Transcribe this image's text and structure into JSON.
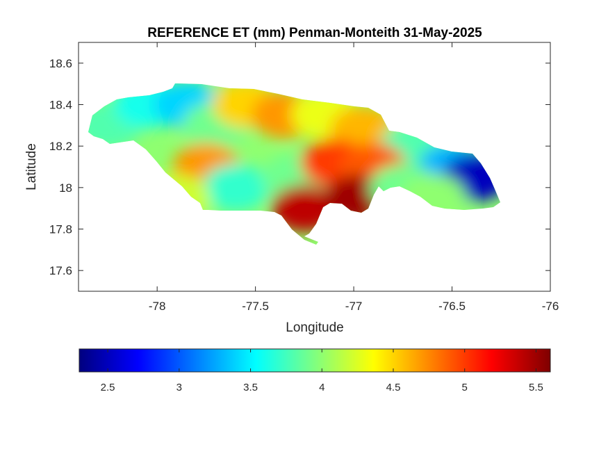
{
  "chart_data": {
    "type": "heatmap",
    "title": "REFERENCE ET (mm) Penman-Monteith 31-May-2025",
    "xlabel": "Longitude",
    "ylabel": "Latitude",
    "xlim": [
      -78.4,
      -76
    ],
    "ylim": [
      17.5,
      18.7
    ],
    "x_ticks": [
      "-78",
      "-77.5",
      "-77",
      "-76.5",
      "-76"
    ],
    "y_ticks": [
      "17.6",
      "17.8",
      "18",
      "18.2",
      "18.4",
      "18.6"
    ],
    "colorbar": {
      "colormap": "jet",
      "range": [
        2.3,
        5.6
      ],
      "ticks": [
        "2.5",
        "3",
        "3.5",
        "4",
        "4.5",
        "5",
        "5.5"
      ],
      "placement": "bottom"
    },
    "regions": [
      {
        "lon": -78.25,
        "lat": 18.3,
        "value": 3.8
      },
      {
        "lon": -78.05,
        "lat": 18.4,
        "value": 3.6
      },
      {
        "lon": -77.85,
        "lat": 18.4,
        "value": 3.4
      },
      {
        "lon": -77.7,
        "lat": 18.3,
        "value": 3.9
      },
      {
        "lon": -77.55,
        "lat": 18.4,
        "value": 4.5
      },
      {
        "lon": -77.35,
        "lat": 18.35,
        "value": 4.7
      },
      {
        "lon": -77.15,
        "lat": 18.35,
        "value": 4.3
      },
      {
        "lon": -76.95,
        "lat": 18.28,
        "value": 4.6
      },
      {
        "lon": -76.7,
        "lat": 18.2,
        "value": 3.8
      },
      {
        "lon": -76.5,
        "lat": 18.1,
        "value": 3.3
      },
      {
        "lon": -76.38,
        "lat": 18.05,
        "value": 2.5
      },
      {
        "lon": -77.75,
        "lat": 18.1,
        "value": 4.7
      },
      {
        "lon": -77.6,
        "lat": 18.0,
        "value": 3.7
      },
      {
        "lon": -77.3,
        "lat": 18.05,
        "value": 3.9
      },
      {
        "lon": -77.1,
        "lat": 18.12,
        "value": 5.0
      },
      {
        "lon": -76.9,
        "lat": 18.1,
        "value": 4.9
      },
      {
        "lon": -77.25,
        "lat": 17.9,
        "value": 5.4
      },
      {
        "lon": -76.98,
        "lat": 17.95,
        "value": 5.5
      },
      {
        "lon": -76.75,
        "lat": 18.0,
        "value": 3.9
      },
      {
        "lon": -76.6,
        "lat": 17.95,
        "value": 4.0
      },
      {
        "lon": -77.9,
        "lat": 17.95,
        "value": 4.2
      }
    ]
  }
}
